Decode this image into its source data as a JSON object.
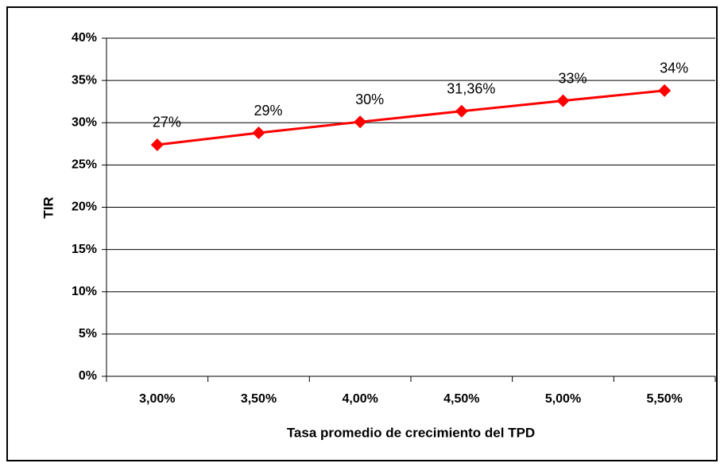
{
  "chart_data": {
    "type": "line",
    "xlabel": "Tasa promedio de crecimiento del TPD",
    "ylabel": "TIR",
    "categories": [
      "3,00%",
      "3,50%",
      "4,00%",
      "4,50%",
      "5,00%",
      "5,50%"
    ],
    "series": [
      {
        "name": "TIR",
        "color": "#ff0000",
        "values": [
          27.39,
          28.8,
          30.1,
          31.36,
          32.6,
          33.8
        ],
        "value_labels": [
          "27%",
          "29%",
          "30%",
          "31,36%",
          "33%",
          "34%"
        ]
      }
    ],
    "ylim": [
      0,
      40
    ],
    "yticks": [
      {
        "value": 0,
        "label": "0%"
      },
      {
        "value": 5,
        "label": "5%"
      },
      {
        "value": 10,
        "label": "10%"
      },
      {
        "value": 15,
        "label": "15%"
      },
      {
        "value": 20,
        "label": "20%"
      },
      {
        "value": 25,
        "label": "25%"
      },
      {
        "value": 30,
        "label": "30%"
      },
      {
        "value": 35,
        "label": "35%"
      },
      {
        "value": 40,
        "label": "40%"
      }
    ],
    "grid": true
  }
}
